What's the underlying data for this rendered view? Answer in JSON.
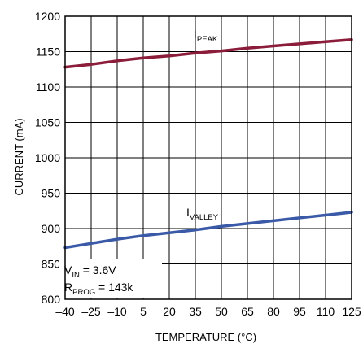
{
  "chart_data": {
    "type": "line",
    "title": "",
    "xlabel": "TEMPERATURE (°C)",
    "ylabel": "CURRENT (mA)",
    "xlim": [
      -40,
      125
    ],
    "ylim": [
      800,
      1200
    ],
    "x_ticks": [
      "–40",
      "–25",
      "–10",
      "5",
      "20",
      "35",
      "50",
      "65",
      "80",
      "95",
      "110",
      "125"
    ],
    "y_ticks": [
      "800",
      "850",
      "900",
      "950",
      "1000",
      "1050",
      "1100",
      "1150",
      "1200"
    ],
    "grid": true,
    "x": [
      -40,
      -25,
      -10,
      5,
      20,
      35,
      50,
      65,
      80,
      95,
      110,
      125
    ],
    "series": [
      {
        "name": "IPEAK",
        "label_main": "I",
        "label_sub": "PEAK",
        "color": "#8b1c3a",
        "values": [
          1128,
          1132,
          1137,
          1141,
          1144,
          1148,
          1151,
          1155,
          1158,
          1161,
          1164,
          1167
        ]
      },
      {
        "name": "IVALLEY",
        "label_main": "I",
        "label_sub": "VALLEY",
        "color": "#3a5aa8",
        "values": [
          873,
          879,
          885,
          890,
          894,
          898,
          903,
          907,
          911,
          915,
          919,
          923
        ]
      }
    ],
    "annotation": {
      "line1_main": "V",
      "line1_sub": "IN",
      "line1_rest": " = 3.6V",
      "line2_main": "R",
      "line2_sub": "PROG",
      "line2_rest": " = 143k"
    }
  }
}
